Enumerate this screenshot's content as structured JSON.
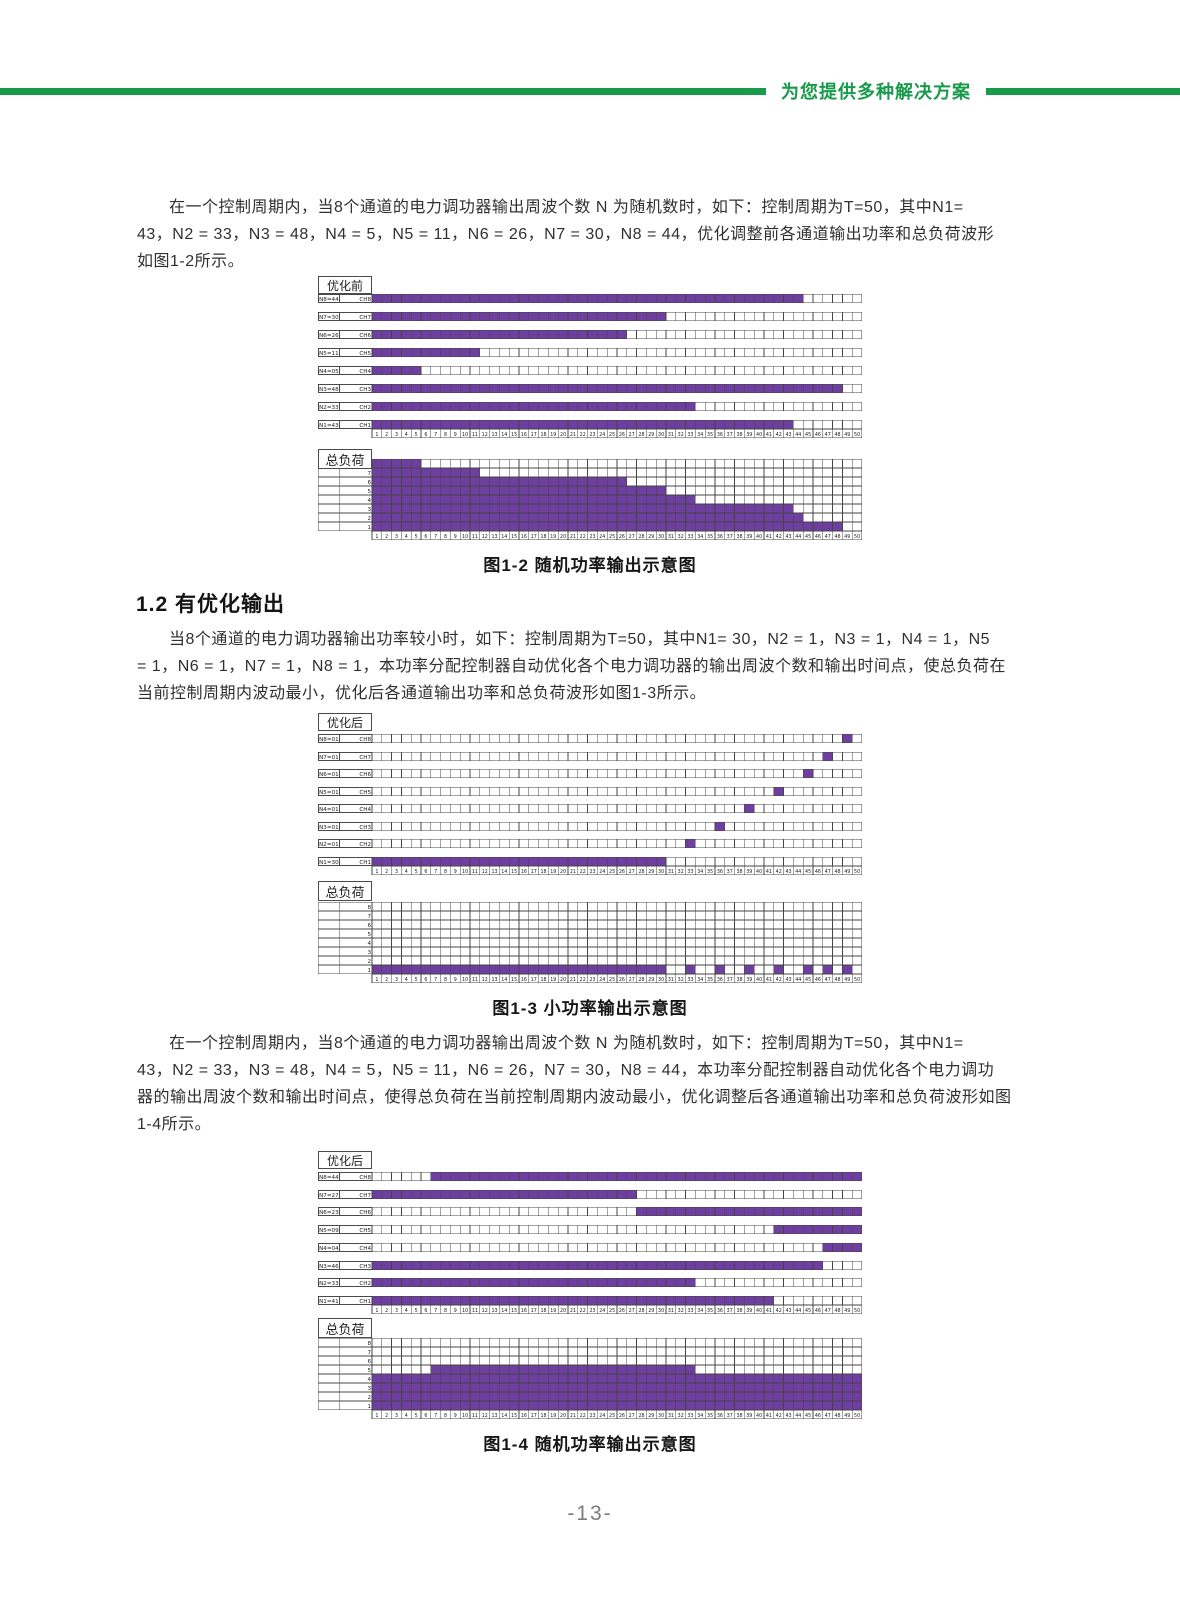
{
  "header": {
    "slogan": "为您提供多种解决方案"
  },
  "content": {
    "section_heading": "1.2 有优化输出",
    "p1": {
      "lines": [
        "在一个控制周期内，当8个通道的电力调功器输出周波个数 N 为随机数时，如下：控制周期为T=50，其中N1=",
        "43，N2 = 33，N3 = 48，N4 = 5，N5 = 11，N6 = 26，N7 = 30，N8 = 44，优化调整前各通道输出功率和总负荷波形",
        "如图1-2所示。"
      ]
    },
    "p2": {
      "lines": [
        "当8个通道的电力调功器输出功率较小时，如下：控制周期为T=50，其中N1= 30，N2 = 1，N3 = 1，N4 = 1，N5",
        "= 1，N6 = 1，N7 = 1，N8 = 1，本功率分配控制器自动优化各个电力调功器的输出周波个数和输出时间点，使总负荷在",
        "当前控制周期内波动最小，优化后各通道输出功率和总负荷波形如图1-3所示。"
      ]
    },
    "p3": {
      "lines": [
        "在一个控制周期内，当8个通道的电力调功器输出周波个数 N 为随机数时，如下：控制周期为T=50，其中N1=",
        "43，N2 = 33，N3 = 48，N4 = 5，N5 = 11，N6 = 26，N7 = 30，N8 = 44，本功率分配控制器自动优化各个电力调功",
        "器的输出周波个数和输出时间点，使得总负荷在当前控制周期内波动最小，优化调整后各通道输出功率和总负荷波形如图",
        "1-4所示。"
      ]
    }
  },
  "page_number": "-13-",
  "colors": {
    "accent_green": "#189a4b",
    "fill_purple": "#6e3ea0",
    "grid_line": "#444444",
    "body_text": "#303030",
    "page_number_gray": "#7c7c7c"
  },
  "chart_data": [
    {
      "type": "waveform_grid",
      "title": "优化前",
      "caption": "图1-2 随机功率输出示意图",
      "load_title": "总负荷",
      "cycles": 50,
      "channels": [
        {
          "label": "N8=44",
          "name": "CH8",
          "on_ranges": [
            [
              1,
              44
            ]
          ]
        },
        {
          "label": "N7=30",
          "name": "CH7",
          "on_ranges": [
            [
              1,
              30
            ]
          ]
        },
        {
          "label": "N6=26",
          "name": "CH6",
          "on_ranges": [
            [
              1,
              26
            ]
          ]
        },
        {
          "label": "N5=11",
          "name": "CH5",
          "on_ranges": [
            [
              1,
              11
            ]
          ]
        },
        {
          "label": "N4=05",
          "name": "CH4",
          "on_ranges": [
            [
              1,
              5
            ]
          ]
        },
        {
          "label": "N3=48",
          "name": "CH3",
          "on_ranges": [
            [
              1,
              48
            ]
          ]
        },
        {
          "label": "N2=33",
          "name": "CH2",
          "on_ranges": [
            [
              1,
              33
            ]
          ]
        },
        {
          "label": "N1=43",
          "name": "CH1",
          "on_ranges": [
            [
              1,
              43
            ]
          ]
        }
      ],
      "load_levels": [
        {
          "level": 8,
          "on_ranges": [
            [
              1,
              5
            ]
          ]
        },
        {
          "level": 7,
          "on_ranges": [
            [
              1,
              11
            ]
          ]
        },
        {
          "level": 6,
          "on_ranges": [
            [
              1,
              26
            ]
          ]
        },
        {
          "level": 5,
          "on_ranges": [
            [
              1,
              30
            ]
          ]
        },
        {
          "level": 4,
          "on_ranges": [
            [
              1,
              33
            ]
          ]
        },
        {
          "level": 3,
          "on_ranges": [
            [
              1,
              43
            ]
          ]
        },
        {
          "level": 2,
          "on_ranges": [
            [
              1,
              44
            ]
          ]
        },
        {
          "level": 1,
          "on_ranges": [
            [
              1,
              48
            ]
          ]
        }
      ]
    },
    {
      "type": "waveform_grid",
      "title": "优化后",
      "caption": "图1-3 小功率输出示意图",
      "load_title": "总负荷",
      "cycles": 50,
      "channels": [
        {
          "label": "N8=01",
          "name": "CH8",
          "on_ranges": [
            [
              49,
              49
            ]
          ]
        },
        {
          "label": "N7=01",
          "name": "CH7",
          "on_ranges": [
            [
              47,
              47
            ]
          ]
        },
        {
          "label": "N6=01",
          "name": "CH6",
          "on_ranges": [
            [
              45,
              45
            ]
          ]
        },
        {
          "label": "N5=01",
          "name": "CH5",
          "on_ranges": [
            [
              42,
              42
            ]
          ]
        },
        {
          "label": "N4=01",
          "name": "CH4",
          "on_ranges": [
            [
              39,
              39
            ]
          ]
        },
        {
          "label": "N3=01",
          "name": "CH3",
          "on_ranges": [
            [
              36,
              36
            ]
          ]
        },
        {
          "label": "N2=01",
          "name": "CH2",
          "on_ranges": [
            [
              33,
              33
            ]
          ]
        },
        {
          "label": "N1=30",
          "name": "CH1",
          "on_ranges": [
            [
              1,
              30
            ]
          ]
        }
      ],
      "load_levels": [
        {
          "level": 8,
          "on_ranges": []
        },
        {
          "level": 7,
          "on_ranges": []
        },
        {
          "level": 6,
          "on_ranges": []
        },
        {
          "level": 5,
          "on_ranges": []
        },
        {
          "level": 4,
          "on_ranges": []
        },
        {
          "level": 3,
          "on_ranges": []
        },
        {
          "level": 2,
          "on_ranges": []
        },
        {
          "level": 1,
          "on_ranges": [
            [
              1,
              30
            ],
            [
              33,
              33
            ],
            [
              36,
              36
            ],
            [
              39,
              39
            ],
            [
              42,
              42
            ],
            [
              45,
              45
            ],
            [
              47,
              47
            ],
            [
              49,
              49
            ]
          ]
        }
      ]
    },
    {
      "type": "waveform_grid",
      "title": "优化后",
      "caption": "图1-4 随机功率输出示意图",
      "load_title": "总负荷",
      "cycles": 50,
      "channels": [
        {
          "label": "N8=44",
          "name": "CH8",
          "on_ranges": [
            [
              7,
              50
            ]
          ]
        },
        {
          "label": "N7=27",
          "name": "CH7",
          "on_ranges": [
            [
              1,
              27
            ]
          ]
        },
        {
          "label": "N6=23",
          "name": "CH6",
          "on_ranges": [
            [
              28,
              50
            ]
          ]
        },
        {
          "label": "N5=09",
          "name": "CH5",
          "on_ranges": [
            [
              42,
              50
            ]
          ]
        },
        {
          "label": "N4=04",
          "name": "CH4",
          "on_ranges": [
            [
              47,
              50
            ]
          ]
        },
        {
          "label": "N3=46",
          "name": "CH3",
          "on_ranges": [
            [
              1,
              46
            ]
          ]
        },
        {
          "label": "N2=33",
          "name": "CH2",
          "on_ranges": [
            [
              1,
              33
            ]
          ]
        },
        {
          "label": "N1=41",
          "name": "CH1",
          "on_ranges": [
            [
              1,
              41
            ]
          ]
        }
      ],
      "load_levels": [
        {
          "level": 8,
          "on_ranges": []
        },
        {
          "level": 7,
          "on_ranges": []
        },
        {
          "level": 6,
          "on_ranges": []
        },
        {
          "level": 5,
          "on_ranges": [
            [
              7,
              33
            ]
          ]
        },
        {
          "level": 4,
          "on_ranges": [
            [
              1,
              50
            ]
          ]
        },
        {
          "level": 3,
          "on_ranges": [
            [
              1,
              50
            ]
          ]
        },
        {
          "level": 2,
          "on_ranges": [
            [
              1,
              50
            ]
          ]
        },
        {
          "level": 1,
          "on_ranges": [
            [
              1,
              50
            ]
          ]
        }
      ]
    }
  ]
}
